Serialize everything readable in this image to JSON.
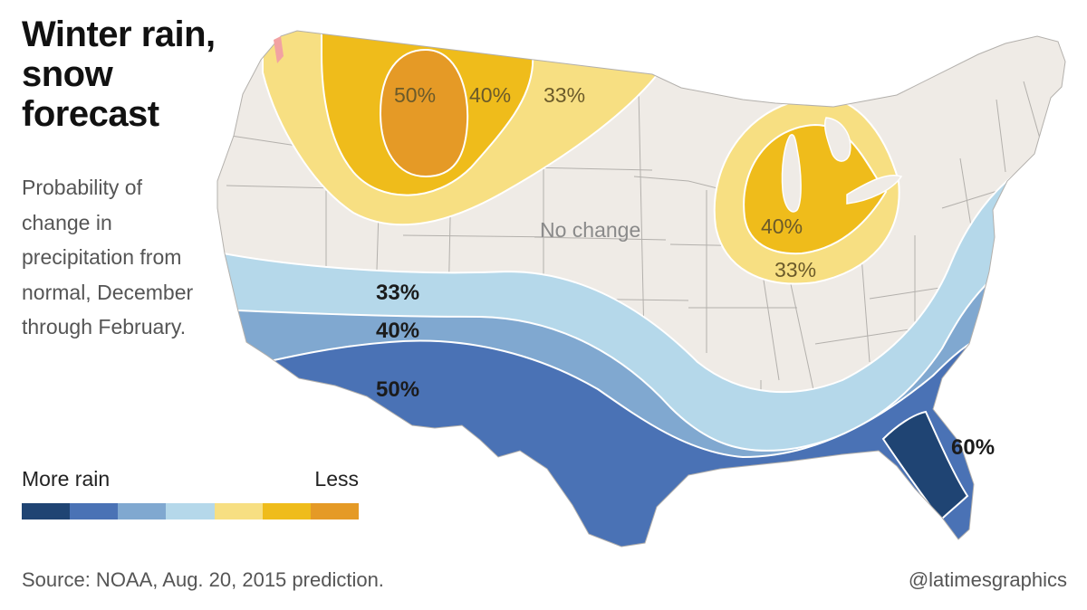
{
  "title": "Winter rain, snow forecast",
  "subtitle": "Probability of change in precipitation from normal, December through February.",
  "legend": {
    "left_label": "More rain",
    "right_label": "Less",
    "swatches": [
      {
        "color": "#1f4473",
        "meaning": "60% wetter"
      },
      {
        "color": "#4a72b5",
        "meaning": "50% wetter"
      },
      {
        "color": "#80a8d0",
        "meaning": "40% wetter"
      },
      {
        "color": "#b5d8ea",
        "meaning": "33% wetter"
      },
      {
        "color": "#f7df82",
        "meaning": "33% drier"
      },
      {
        "color": "#efbc1b",
        "meaning": "40% drier"
      },
      {
        "color": "#e59a26",
        "meaning": "50% drier"
      }
    ]
  },
  "map": {
    "base_color": "#efebe6",
    "border_color": "#b3b0ac",
    "regions": {
      "northwest_dry": [
        "50%",
        "40%",
        "33%"
      ],
      "great_lakes_dry": [
        "40%",
        "33%"
      ],
      "south_wet": [
        "33%",
        "40%",
        "50%"
      ],
      "florida_wet": "60%",
      "center": "No change"
    }
  },
  "source": "Source: NOAA, Aug. 20, 2015 prediction.",
  "credit": "@latimesgraphics"
}
